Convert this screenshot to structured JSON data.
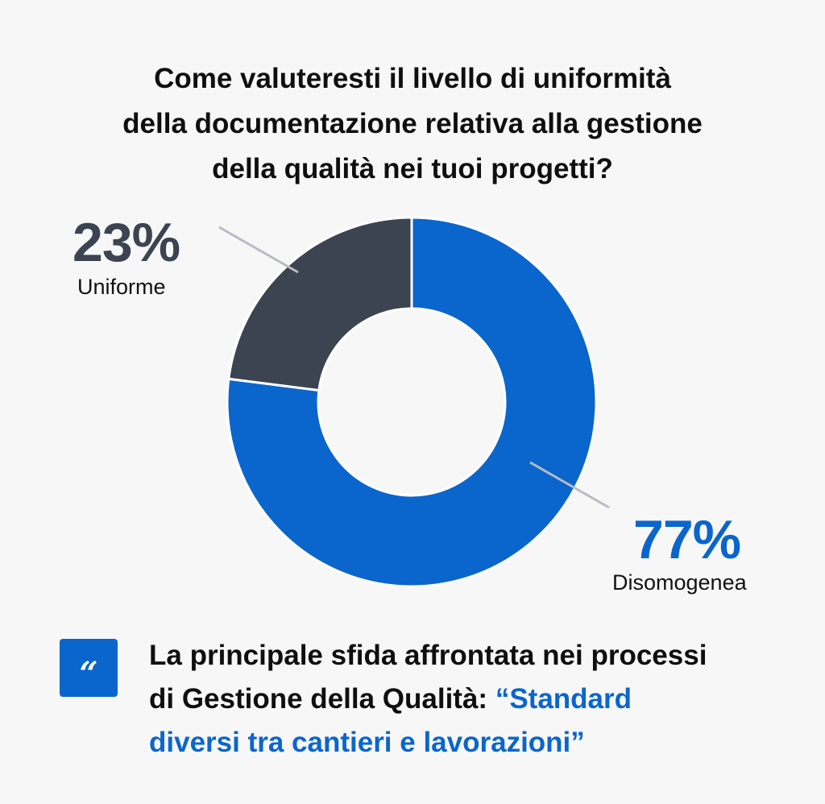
{
  "title": {
    "line1": "Come valuteresti il livello di uniformità",
    "line2": "della documentazione relativa alla gestione",
    "line3": "della qualità nei tuoi progetti?"
  },
  "chart_data": {
    "type": "pie",
    "style": "donut",
    "slices": [
      {
        "label": "Uniforme",
        "value": 23,
        "display": "23%",
        "color": "#3b4450"
      },
      {
        "label": "Disomogenea",
        "value": 77,
        "display": "77%",
        "color": "#0a66cc"
      }
    ],
    "leader_line_color": "#b8bcc2"
  },
  "quote": {
    "icon": "quote-icon",
    "icon_glyph": "“",
    "text_line1": "La principale sfida affrontata nei processi",
    "text_line2": "di Gestione della Qualità: ",
    "highlight_line1": "“Standard",
    "highlight_line2": "diversi tra cantieri e lavorazioni”",
    "highlight_color": "#0a66cc"
  }
}
